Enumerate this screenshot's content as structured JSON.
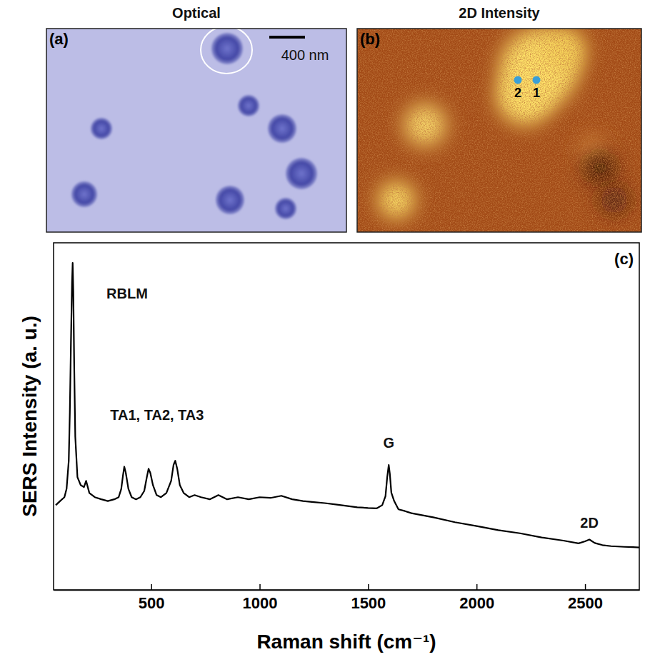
{
  "chart_data": [
    {
      "type": "image",
      "title": "Optical",
      "panel_label": "(a)",
      "scale_bar_label": "400 nm"
    },
    {
      "type": "heatmap",
      "title": "2D Intensity",
      "panel_label": "(b)",
      "points": [
        {
          "label": "1"
        },
        {
          "label": "2"
        }
      ]
    },
    {
      "type": "line",
      "panel_label": "(c)",
      "x_label": "Raman shift (cm⁻¹)",
      "y_label": "SERS Intensity (a. u.)",
      "x": [
        60,
        80,
        100,
        110,
        120,
        125,
        130,
        135,
        138,
        141,
        145,
        150,
        160,
        175,
        190,
        200,
        215,
        240,
        270,
        300,
        330,
        350,
        362,
        370,
        376,
        383,
        395,
        410,
        430,
        450,
        468,
        480,
        488,
        496,
        508,
        525,
        545,
        570,
        592,
        603,
        611,
        620,
        632,
        650,
        675,
        700,
        730,
        770,
        810,
        850,
        900,
        950,
        1000,
        1050,
        1100,
        1150,
        1200,
        1250,
        1300,
        1350,
        1400,
        1450,
        1500,
        1540,
        1565,
        1580,
        1588,
        1595,
        1600,
        1607,
        1620,
        1640,
        1670,
        1700,
        1800,
        1900,
        2000,
        2100,
        2200,
        2300,
        2400,
        2470,
        2500,
        2520,
        2545,
        2580,
        2620,
        2680,
        2720,
        2750
      ],
      "series": [
        {
          "color": "#000000",
          "values": [
            24.4,
            25.6,
            26.7,
            29.1,
            37.2,
            51.2,
            70.9,
            88.4,
            94.2,
            86.0,
            65.1,
            44.2,
            32.5,
            30.2,
            29.6,
            31.4,
            27.9,
            26.7,
            26.1,
            25.6,
            26.1,
            26.7,
            29.1,
            33.0,
            35.5,
            33.7,
            29.1,
            26.7,
            26.1,
            26.7,
            28.5,
            32.5,
            34.9,
            33.7,
            30.2,
            27.3,
            26.7,
            27.9,
            31.4,
            36.0,
            37.2,
            34.9,
            30.2,
            27.9,
            26.7,
            27.3,
            26.7,
            26.1,
            27.3,
            26.1,
            26.7,
            26.1,
            26.7,
            26.5,
            27.1,
            26.1,
            25.6,
            25.3,
            25.0,
            24.6,
            24.2,
            23.8,
            23.6,
            23.5,
            24.4,
            27.0,
            32.5,
            36.0,
            33.5,
            28.0,
            25.6,
            23.2,
            22.7,
            22.1,
            20.9,
            19.5,
            18.4,
            17.2,
            16.3,
            15.1,
            14.2,
            13.4,
            14.0,
            14.5,
            13.5,
            12.9,
            12.6,
            12.4,
            12.3,
            12.2
          ]
        }
      ],
      "xlim": [
        50,
        2750
      ],
      "ylim": [
        0,
        100
      ],
      "xticks": [
        500,
        1000,
        1500,
        2000,
        2500
      ],
      "tick_labels": "x",
      "annotations": [
        {
          "text": "RBLM",
          "x": 389,
          "y": 84
        },
        {
          "text": "TA1, TA2, TA3",
          "x": 527,
          "y": 49
        },
        {
          "text": "G",
          "x": 1595,
          "y": 41
        },
        {
          "text": "2D",
          "x": 2520,
          "y": 18
        }
      ]
    }
  ]
}
